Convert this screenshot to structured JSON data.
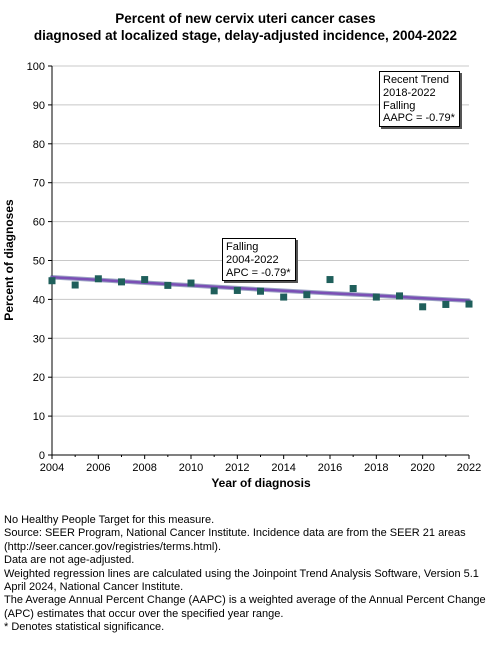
{
  "chart_data": {
    "type": "scatter",
    "title": [
      "Percent of new cervix uteri cancer cases",
      "diagnosed at localized stage, delay-adjusted incidence, 2004-2022"
    ],
    "xlabel": "Year of diagnosis",
    "ylabel": "Percent of diagnoses",
    "xlim": [
      2004,
      2022
    ],
    "ylim": [
      0,
      100
    ],
    "x_ticks": [
      2004,
      2006,
      2008,
      2010,
      2012,
      2014,
      2016,
      2018,
      2020,
      2022
    ],
    "y_ticks": [
      0,
      10,
      20,
      30,
      40,
      50,
      60,
      70,
      80,
      90,
      100
    ],
    "grid": "horizontal",
    "series": [
      {
        "type": "scatter",
        "marker": "square",
        "color": "#1f5f5b",
        "points": [
          {
            "x": 2004,
            "y": 44.8
          },
          {
            "x": 2005,
            "y": 43.7
          },
          {
            "x": 2006,
            "y": 45.3
          },
          {
            "x": 2007,
            "y": 44.5
          },
          {
            "x": 2008,
            "y": 45.1
          },
          {
            "x": 2009,
            "y": 43.6
          },
          {
            "x": 2010,
            "y": 44.2
          },
          {
            "x": 2011,
            "y": 42.2
          },
          {
            "x": 2012,
            "y": 42.3
          },
          {
            "x": 2013,
            "y": 42.1
          },
          {
            "x": 2014,
            "y": 40.6
          },
          {
            "x": 2015,
            "y": 41.2
          },
          {
            "x": 2016,
            "y": 45.1
          },
          {
            "x": 2017,
            "y": 42.8
          },
          {
            "x": 2018,
            "y": 40.6
          },
          {
            "x": 2019,
            "y": 40.9
          },
          {
            "x": 2020,
            "y": 38.1
          },
          {
            "x": 2021,
            "y": 38.7
          },
          {
            "x": 2022,
            "y": 38.8
          }
        ]
      },
      {
        "type": "line",
        "color": "#7a4fb5",
        "points": [
          {
            "x": 2004,
            "y": 45.7
          },
          {
            "x": 2006,
            "y": 45.0
          },
          {
            "x": 2008,
            "y": 44.3
          },
          {
            "x": 2010,
            "y": 43.6
          },
          {
            "x": 2012,
            "y": 42.9
          },
          {
            "x": 2014,
            "y": 42.2
          },
          {
            "x": 2016,
            "y": 41.6
          },
          {
            "x": 2018,
            "y": 41.0
          },
          {
            "x": 2020,
            "y": 40.3
          },
          {
            "x": 2022,
            "y": 39.7
          }
        ]
      }
    ],
    "annotations": [
      {
        "id": "overall",
        "lines": [
          "Falling",
          "2004-2022",
          "APC = -0.79*"
        ]
      },
      {
        "id": "recent",
        "lines": [
          "Recent Trend",
          "2018-2022",
          "Falling",
          "AAPC = -0.79*"
        ]
      }
    ]
  },
  "footnotes": [
    "No Healthy People Target for this measure.",
    "Source: SEER Program, National Cancer Institute. Incidence data are from the SEER 21 areas (http://seer.cancer.gov/registries/terms.html).",
    "Data are not age-adjusted.",
    "Weighted regression lines are calculated using the Joinpoint Trend Analysis Software, Version 5.1 April 2024, National Cancer Institute.",
    "The Average Annual Percent Change (AAPC) is a weighted average of the Annual Percent Change (APC) estimates that occur over the specified year range.",
    "* Denotes statistical significance."
  ]
}
